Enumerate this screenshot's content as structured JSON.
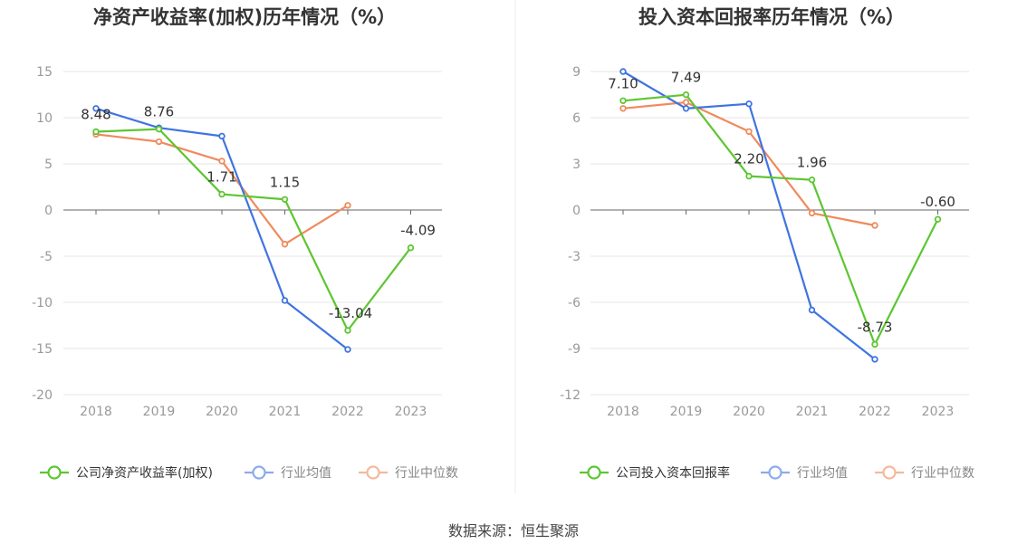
{
  "footer": {
    "source": "数据来源：恒生聚源"
  },
  "colors": {
    "company": "#5dc631",
    "avg": "#3f74e0",
    "median": "#f08a5d"
  },
  "chart_data": [
    {
      "type": "line",
      "title": "净资产收益率(加权)历年情况（%）",
      "categories": [
        "2018",
        "2019",
        "2020",
        "2021",
        "2022",
        "2023"
      ],
      "ylim": [
        -20,
        15
      ],
      "yticks": [
        15,
        10,
        5,
        0,
        -5,
        -10,
        -15,
        -20
      ],
      "grid": true,
      "legend_position": "bottom",
      "series": [
        {
          "key": "company",
          "name": "公司净资产收益率(加权)",
          "values": [
            8.48,
            8.76,
            1.71,
            1.15,
            -13.04,
            -4.09
          ],
          "labels": [
            "8.48",
            "8.76",
            "1.71",
            "1.15",
            "-13.04",
            "-4.09"
          ]
        },
        {
          "key": "avg",
          "name": "行业均值",
          "values": [
            11.0,
            8.9,
            8.0,
            -9.8,
            -15.1,
            null
          ]
        },
        {
          "key": "median",
          "name": "行业中位数",
          "values": [
            8.2,
            7.4,
            5.3,
            -3.7,
            0.5,
            null
          ]
        }
      ]
    },
    {
      "type": "line",
      "title": "投入资本回报率历年情况（%）",
      "categories": [
        "2018",
        "2019",
        "2020",
        "2021",
        "2022",
        "2023"
      ],
      "ylim": [
        -12,
        9
      ],
      "yticks": [
        9,
        6,
        3,
        0,
        -3,
        -6,
        -9,
        -12
      ],
      "grid": true,
      "legend_position": "bottom",
      "series": [
        {
          "key": "company",
          "name": "公司投入资本回报率",
          "values": [
            7.1,
            7.49,
            2.2,
            1.96,
            -8.73,
            -0.6
          ],
          "labels": [
            "7.10",
            "7.49",
            "2.20",
            "1.96",
            "-8.73",
            "-0.60"
          ]
        },
        {
          "key": "avg",
          "name": "行业均值",
          "values": [
            9.0,
            6.6,
            6.9,
            -6.5,
            -9.7,
            null
          ]
        },
        {
          "key": "median",
          "name": "行业中位数",
          "values": [
            6.6,
            7.0,
            5.1,
            -0.2,
            -1.0,
            null
          ]
        }
      ]
    }
  ]
}
